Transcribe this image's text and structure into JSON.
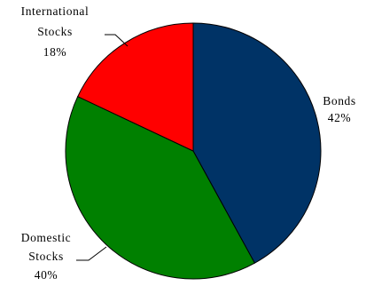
{
  "chart_data": {
    "type": "pie",
    "slices": [
      {
        "label_lines": [
          "Bonds"
        ],
        "value": 42,
        "value_label": "42%",
        "color": "#003366"
      },
      {
        "label_lines": [
          "Domestic",
          "Stocks"
        ],
        "value": 40,
        "value_label": "40%",
        "color": "#008000"
      },
      {
        "label_lines": [
          "International",
          "Stocks"
        ],
        "value": 18,
        "value_label": "18%",
        "color": "#FF0000"
      }
    ],
    "start": "12 o'clock",
    "direction": "clockwise",
    "legend": "none",
    "title": ""
  }
}
